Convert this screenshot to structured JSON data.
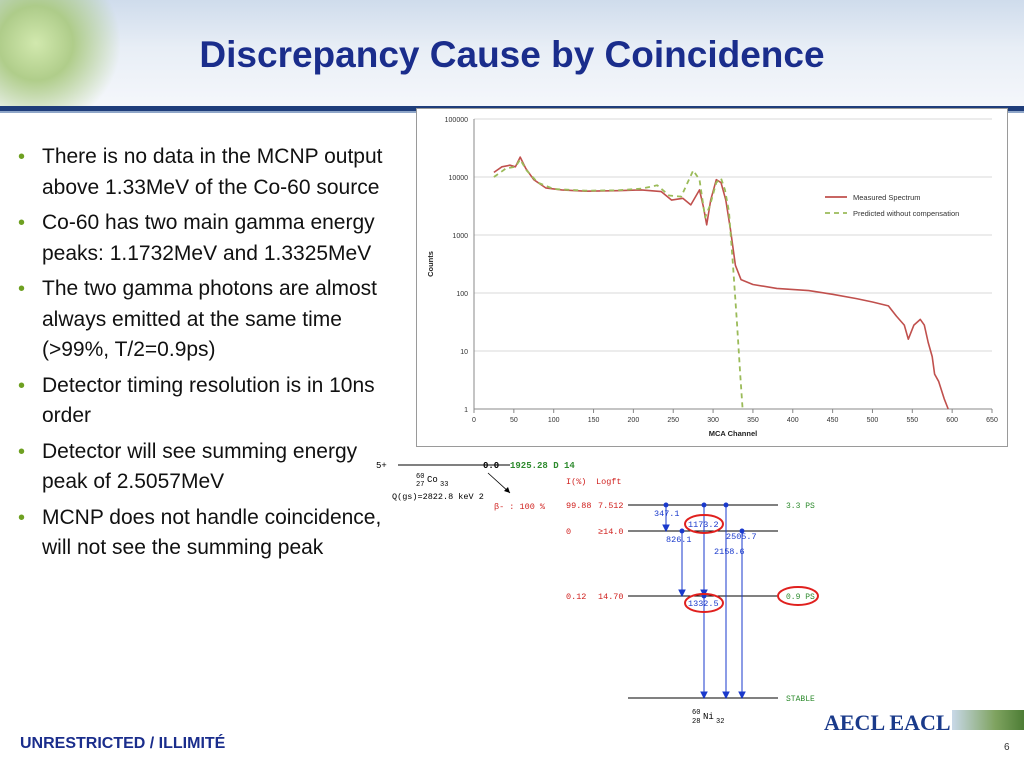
{
  "slide": {
    "title": "Discrepancy Cause by Coincidence",
    "footer": "UNRESTRICTED / ILLIMITÉ",
    "page_number": "6",
    "logo": "AECL EACL"
  },
  "bullets": [
    "There is no data in the MCNP output above 1.33MeV of the Co-60 source",
    "Co-60 has two main gamma energy peaks: 1.1732MeV and 1.3325MeV",
    "The two gamma photons are almost always emitted at the same time (>99%, T/2=0.9ps)",
    "Detector timing resolution is in 10ns order",
    "Detector will see summing energy peak of 2.5057MeV",
    "MCNP does not handle coincidence, will not see the summing peak"
  ],
  "chart_data": {
    "type": "line",
    "xlabel": "MCA Channel",
    "ylabel": "Counts",
    "xlim": [
      0,
      650
    ],
    "ylim": [
      1,
      100000
    ],
    "yscale": "log",
    "grid": true,
    "legend_position": "right",
    "x_ticks": [
      "0",
      "50",
      "100",
      "150",
      "200",
      "250",
      "300",
      "350",
      "400",
      "450",
      "500",
      "550",
      "600",
      "650"
    ],
    "y_ticks": [
      "1",
      "10",
      "100",
      "1000",
      "10000",
      "100000"
    ],
    "series": [
      {
        "name": "Measured Spectrum",
        "color": "#c0504d",
        "style": "solid",
        "points": [
          [
            25,
            12000
          ],
          [
            35,
            15000
          ],
          [
            45,
            16000
          ],
          [
            52,
            15000
          ],
          [
            58,
            22000
          ],
          [
            65,
            14000
          ],
          [
            75,
            9000
          ],
          [
            90,
            6500
          ],
          [
            110,
            6000
          ],
          [
            140,
            5700
          ],
          [
            180,
            5800
          ],
          [
            210,
            6000
          ],
          [
            235,
            5600
          ],
          [
            248,
            4000
          ],
          [
            262,
            4300
          ],
          [
            272,
            3300
          ],
          [
            283,
            6000
          ],
          [
            288,
            3000
          ],
          [
            292,
            1500
          ],
          [
            297,
            4000
          ],
          [
            304,
            9000
          ],
          [
            310,
            8000
          ],
          [
            316,
            4000
          ],
          [
            322,
            1200
          ],
          [
            328,
            300
          ],
          [
            335,
            170
          ],
          [
            350,
            140
          ],
          [
            380,
            120
          ],
          [
            420,
            110
          ],
          [
            450,
            95
          ],
          [
            480,
            80
          ],
          [
            500,
            70
          ],
          [
            520,
            60
          ],
          [
            530,
            40
          ],
          [
            540,
            28
          ],
          [
            545,
            16
          ],
          [
            552,
            28
          ],
          [
            560,
            35
          ],
          [
            565,
            28
          ],
          [
            570,
            14
          ],
          [
            575,
            8
          ],
          [
            578,
            4
          ],
          [
            583,
            3
          ],
          [
            590,
            1.5
          ],
          [
            595,
            1
          ]
        ]
      },
      {
        "name": "Predicted without compensation",
        "color": "#9bbb59",
        "style": "dashed",
        "points": [
          [
            25,
            10000
          ],
          [
            40,
            14000
          ],
          [
            52,
            15000
          ],
          [
            58,
            20000
          ],
          [
            66,
            13000
          ],
          [
            80,
            8000
          ],
          [
            100,
            6200
          ],
          [
            140,
            5800
          ],
          [
            180,
            5900
          ],
          [
            210,
            6300
          ],
          [
            230,
            7200
          ],
          [
            245,
            4800
          ],
          [
            260,
            4600
          ],
          [
            275,
            13000
          ],
          [
            283,
            9000
          ],
          [
            290,
            2000
          ],
          [
            296,
            3200
          ],
          [
            304,
            8000
          ],
          [
            310,
            9500
          ],
          [
            315,
            6000
          ],
          [
            320,
            2500
          ],
          [
            325,
            300
          ],
          [
            330,
            30
          ],
          [
            334,
            4
          ],
          [
            337,
            1
          ]
        ]
      }
    ]
  },
  "decay_scheme": {
    "parent_spin": "5+",
    "parent_level": "0.0",
    "parent_halflife": "1925.28 D 14",
    "parent_nuclide_mass": "60",
    "parent_nuclide_Z": "27",
    "parent_nuclide_symbol": "Co",
    "parent_nuclide_N": "33",
    "qvalue": "Q(gs)=2822.8 keV 2",
    "beta_branch": "β- : 100 %",
    "col_intensity": "I(%)",
    "col_logft": "Logft",
    "levels": [
      {
        "intensity": "99.88",
        "logft": "7.512",
        "halflife": "3.3 PS"
      },
      {
        "intensity": "0",
        "logft": "≥14.0",
        "halflife": ""
      },
      {
        "intensity": "0.12",
        "logft": "14.70",
        "halflife": "0.9 PS"
      },
      {
        "intensity": "",
        "logft": "",
        "halflife": "STABLE"
      }
    ],
    "gammas": [
      "347.1",
      "1173.2",
      "826.1",
      "2505.7",
      "2158.6",
      "1332.5"
    ],
    "daughter_mass": "60",
    "daughter_Z": "28",
    "daughter_symbol": "Ni",
    "daughter_N": "32"
  },
  "colors": {
    "title": "#1a2d8c",
    "bullet": "#6ea021",
    "header_line": "#1f3d7a",
    "highlight_circle": "#e0201e",
    "scheme_blue": "#1a3acc",
    "scheme_red": "#d0201e",
    "scheme_green": "#2e8b2e"
  }
}
